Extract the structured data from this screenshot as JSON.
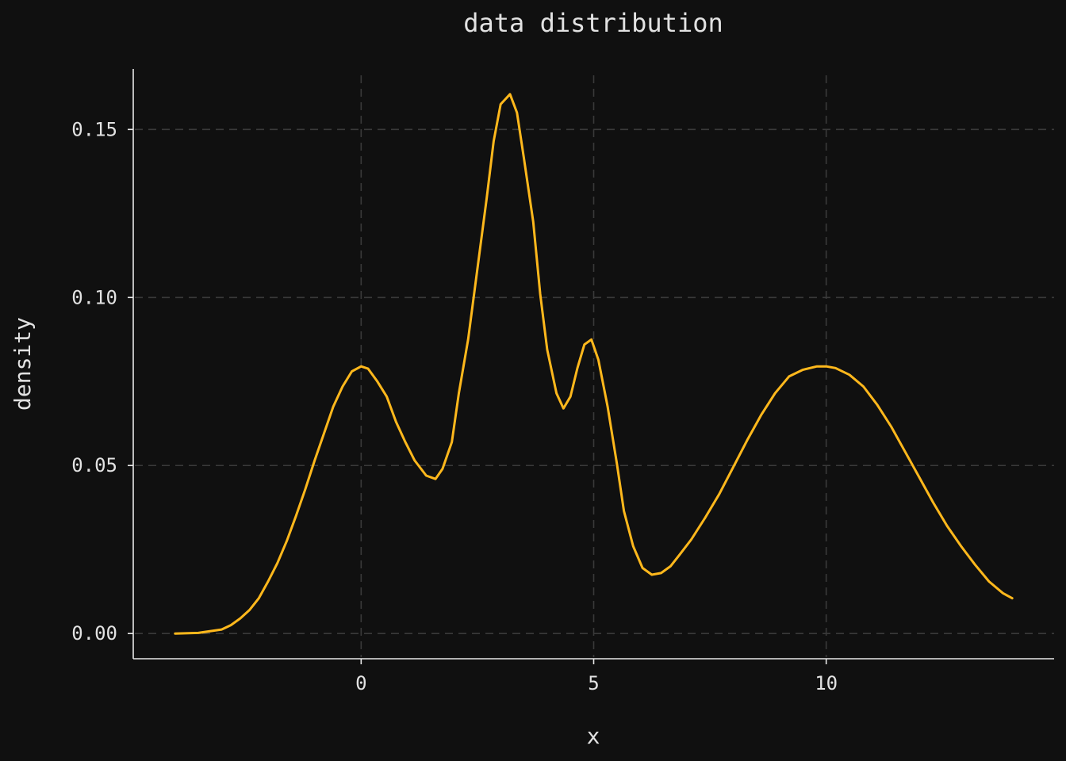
{
  "colors": {
    "background": "#101010",
    "line": "#ffb81c",
    "grid": "#3a3a3a",
    "axis": "#e8e8e8",
    "text": "#e2e2e2"
  },
  "chart_data": {
    "type": "line",
    "title": "data distribution",
    "xlabel": "x",
    "ylabel": "density",
    "xlim": [
      -4.9,
      14.9
    ],
    "ylim": [
      -0.0075,
      0.168
    ],
    "xticks": [
      0,
      5,
      10
    ],
    "xtick_labels": [
      "0",
      "5",
      "10"
    ],
    "yticks": [
      0.0,
      0.05,
      0.1,
      0.15
    ],
    "ytick_labels": [
      "0.00",
      "0.05",
      "0.10",
      "0.15"
    ],
    "grid": true,
    "legend": false,
    "series": [
      {
        "x": [
          -4.0,
          -3.5,
          -3.0,
          -2.8,
          -2.6,
          -2.4,
          -2.2,
          -2.0,
          -1.8,
          -1.6,
          -1.4,
          -1.2,
          -1.0,
          -0.8,
          -0.6,
          -0.4,
          -0.2,
          0.0,
          0.15,
          0.35,
          0.55,
          0.75,
          0.95,
          1.15,
          1.4,
          1.6,
          1.75,
          1.95,
          2.1,
          2.3,
          2.5,
          2.7,
          2.85,
          3.0,
          3.2,
          3.35,
          3.5,
          3.7,
          3.85,
          4.0,
          4.2,
          4.35,
          4.5,
          4.65,
          4.8,
          4.95,
          5.1,
          5.3,
          5.5,
          5.65,
          5.85,
          6.05,
          6.25,
          6.45,
          6.65,
          6.85,
          7.1,
          7.4,
          7.7,
          8.0,
          8.3,
          8.6,
          8.9,
          9.2,
          9.5,
          9.8,
          10.0,
          10.2,
          10.5,
          10.8,
          11.1,
          11.4,
          11.7,
          12.0,
          12.3,
          12.6,
          12.9,
          13.2,
          13.5,
          13.8,
          14.0
        ],
        "y": [
          0.0,
          0.0002,
          0.0012,
          0.0025,
          0.0045,
          0.007,
          0.0105,
          0.0155,
          0.021,
          0.0275,
          0.035,
          0.043,
          0.0515,
          0.0595,
          0.0675,
          0.0735,
          0.078,
          0.0795,
          0.0788,
          0.075,
          0.0705,
          0.063,
          0.057,
          0.0515,
          0.047,
          0.046,
          0.049,
          0.057,
          0.0715,
          0.0875,
          0.1085,
          0.1295,
          0.1465,
          0.1575,
          0.1605,
          0.155,
          0.1415,
          0.1225,
          0.101,
          0.0845,
          0.0715,
          0.067,
          0.0705,
          0.079,
          0.086,
          0.0875,
          0.0815,
          0.0675,
          0.0505,
          0.0365,
          0.026,
          0.0195,
          0.0175,
          0.018,
          0.02,
          0.0235,
          0.028,
          0.0345,
          0.0415,
          0.0495,
          0.0575,
          0.065,
          0.0715,
          0.0765,
          0.0785,
          0.0795,
          0.0795,
          0.079,
          0.077,
          0.0735,
          0.068,
          0.0615,
          0.054,
          0.0465,
          0.039,
          0.032,
          0.026,
          0.0205,
          0.0155,
          0.012,
          0.0105
        ]
      }
    ]
  }
}
